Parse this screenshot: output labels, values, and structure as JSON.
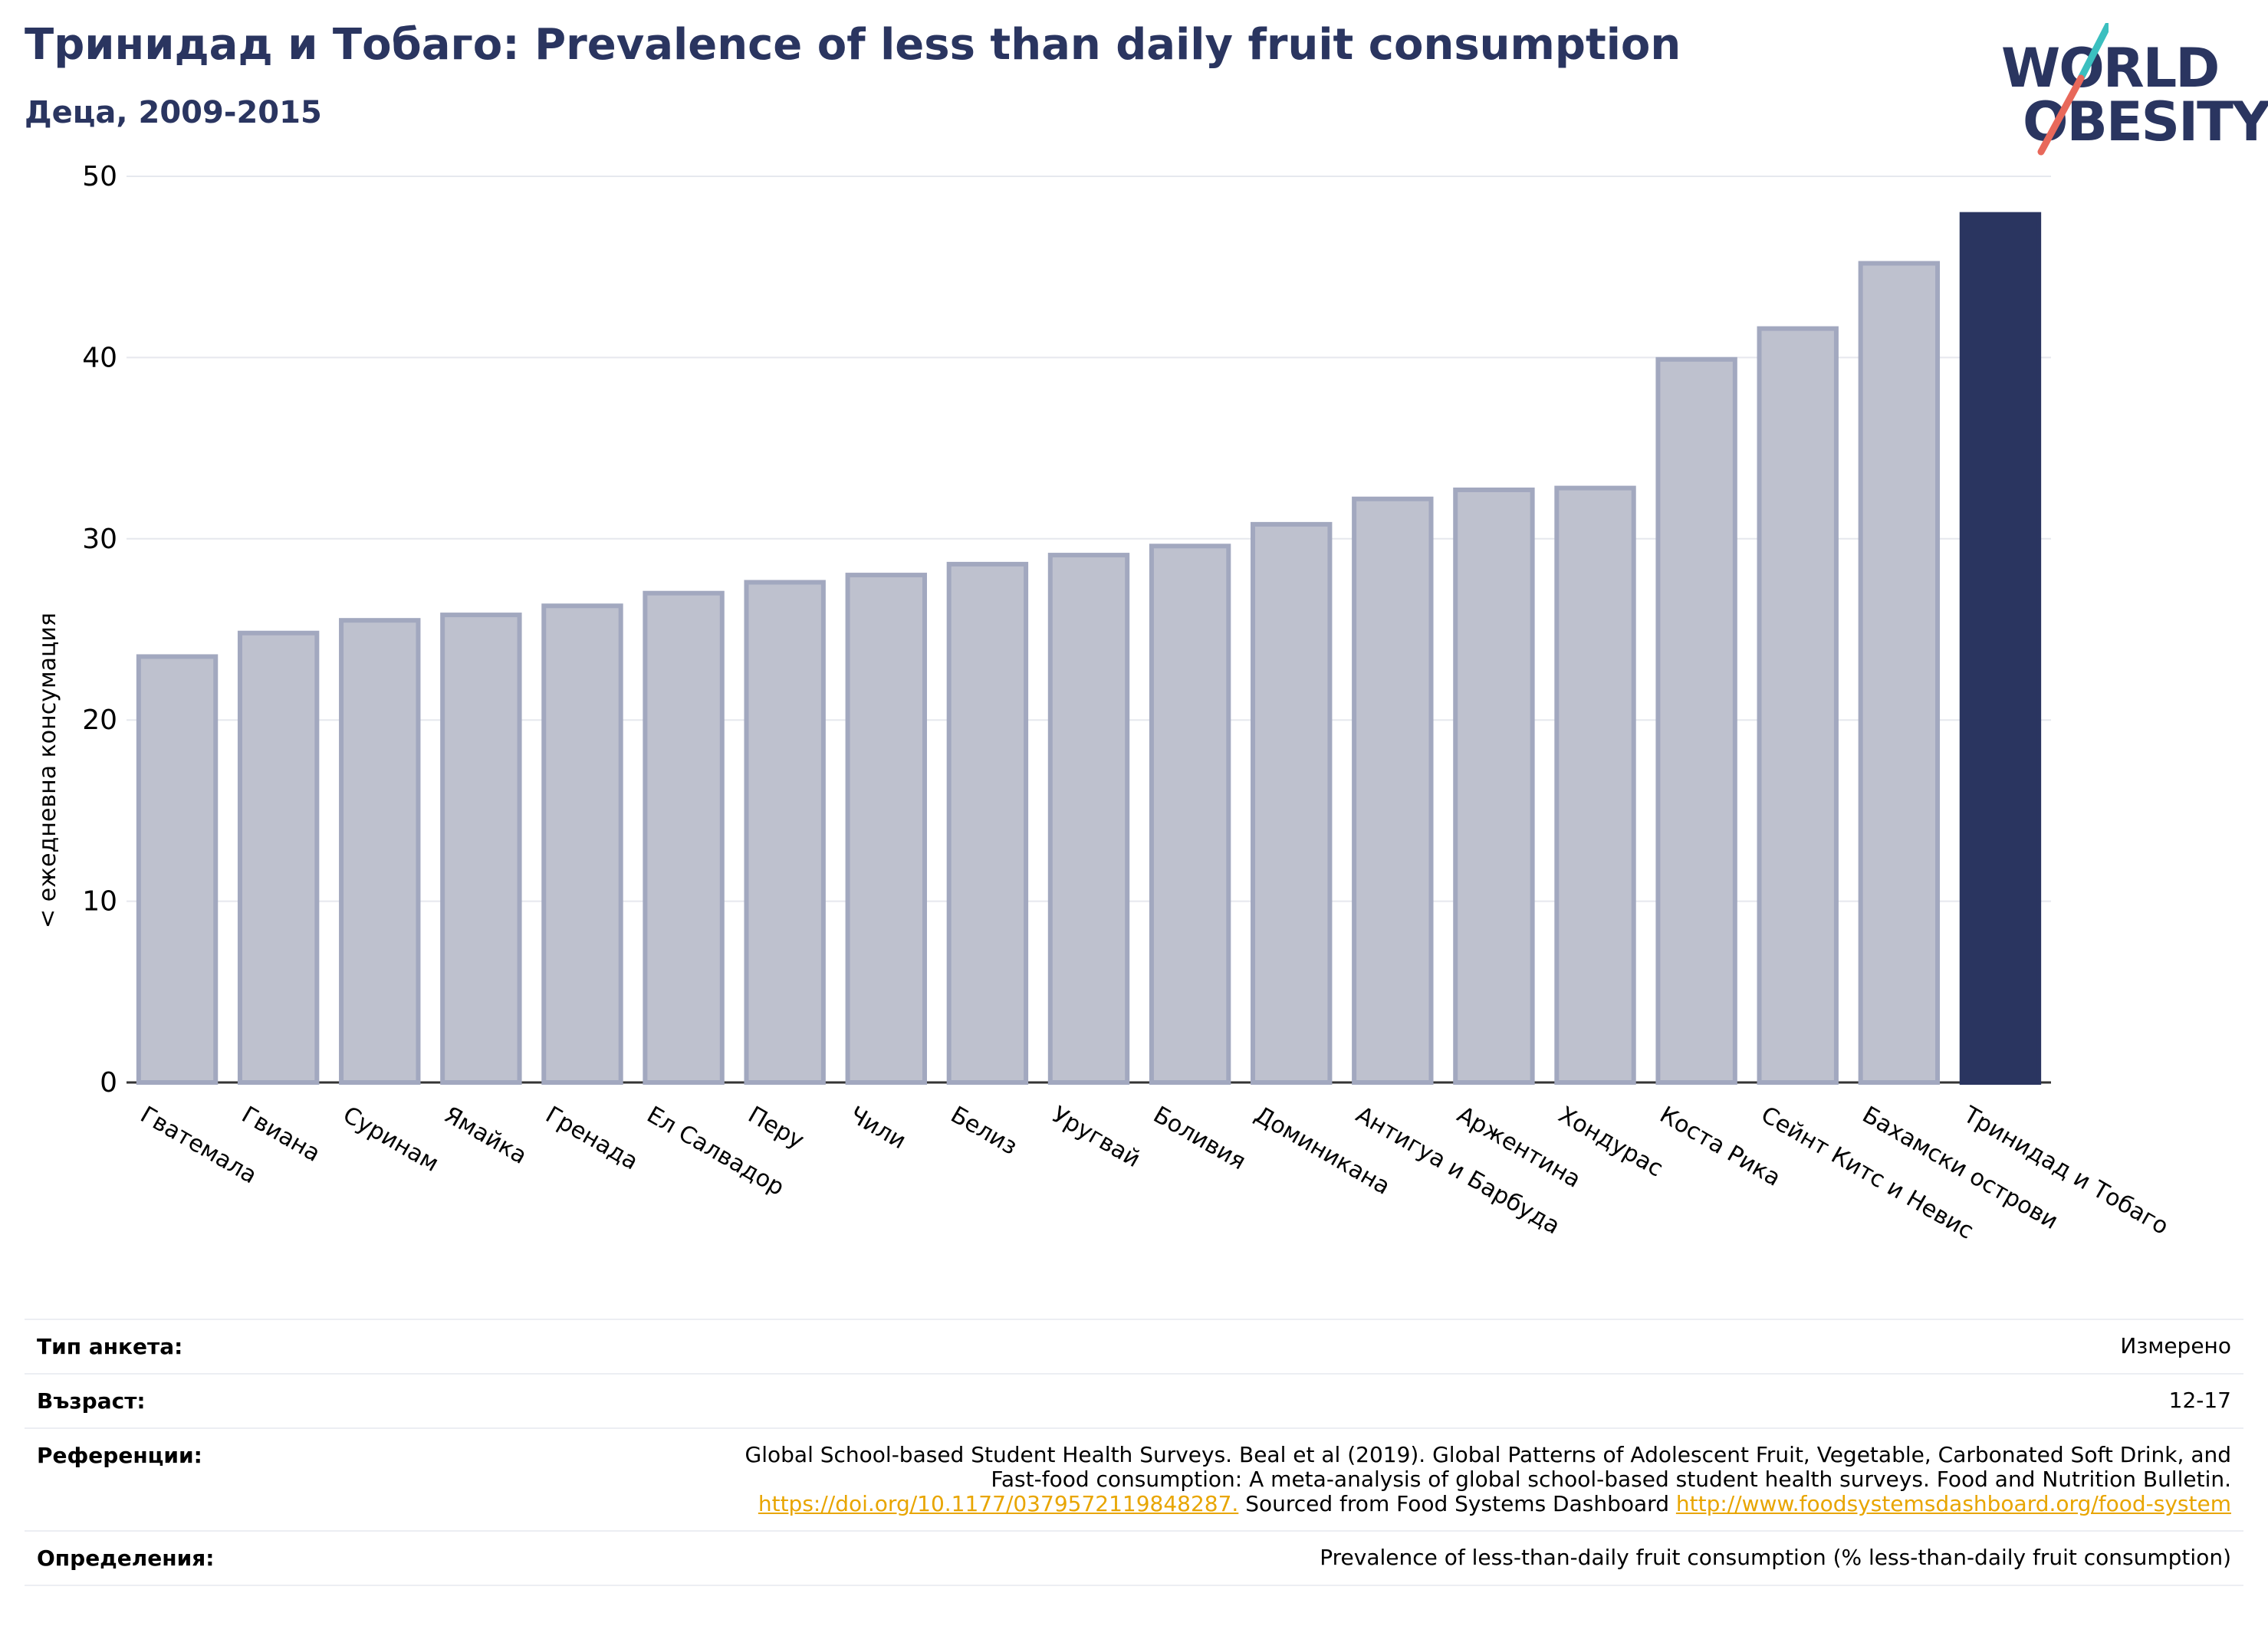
{
  "header": {
    "title": "Тринидад и Тобаго: Prevalence of less than daily fruit consumption",
    "subtitle": "Деца, 2009-2015"
  },
  "logo": {
    "line1": "WORLD",
    "line2": "OBESITY"
  },
  "colors": {
    "brand": "#2a3560",
    "bar_fill": "#bec1ce",
    "bar_stroke": "#a2a8bf",
    "highlight": "#2a3560",
    "accent_teal": "#3bbfbf",
    "accent_coral": "#e8685a",
    "link": "#e8a500"
  },
  "chart_data": {
    "type": "bar",
    "ylabel": "< ежедневна консумация",
    "ylim": [
      0,
      50
    ],
    "yticks": [
      0,
      10,
      20,
      30,
      40,
      50
    ],
    "grid": true,
    "highlight": "Тринидад и Тобаго",
    "categories": [
      "Гватемала",
      "Гвиана",
      "Суринам",
      "Ямайка",
      "Гренада",
      "Ел Салвадор",
      "Перу",
      "Чили",
      "Белиз",
      "Уругвай",
      "Боливия",
      "Доминикана",
      "Антигуа и Барбуда",
      "Аржентина",
      "Хондурас",
      "Коста Рика",
      "Сейнт Китс и Невис",
      "Бахамски острови",
      "Тринидад и Тобаго"
    ],
    "values": [
      23.5,
      24.8,
      25.5,
      25.8,
      26.3,
      27.0,
      27.6,
      28.0,
      28.6,
      29.1,
      29.6,
      30.8,
      32.2,
      32.7,
      32.8,
      39.9,
      41.6,
      45.2,
      47.9
    ]
  },
  "info": {
    "survey_type": {
      "label": "Тип анкета:",
      "value": "Измерено"
    },
    "age": {
      "label": "Възраст:",
      "value": "12-17"
    },
    "references": {
      "label": "Референции:",
      "line1": "Global School-based Student Health Surveys. Beal et al (2019). Global Patterns of Adolescent Fruit, Vegetable, Carbonated Soft Drink, and",
      "line2": "Fast-food consumption: A meta-analysis of global school-based student health surveys. Food and Nutrition Bulletin.",
      "doi_link": "https://doi.org/10.1177/0379572119848287.",
      "sourced_text": " Sourced from Food Systems Dashboard ",
      "dashboard_link": "http://www.foodsystemsdashboard.org/food-system"
    },
    "definitions": {
      "label": "Определения:",
      "value": "Prevalence of less-than-daily fruit consumption (% less-than-daily fruit consumption)"
    }
  }
}
